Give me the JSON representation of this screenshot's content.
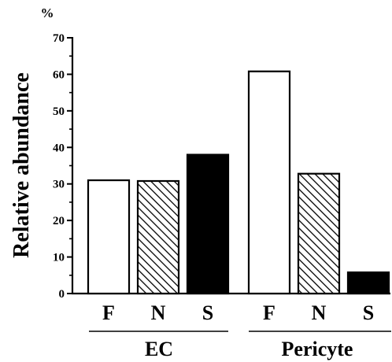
{
  "chart_data": {
    "type": "bar",
    "title": "",
    "xlabel": "",
    "ylabel": "Relative abundance",
    "unit": "%",
    "ylim": [
      0,
      70
    ],
    "yticks": [
      "0",
      "10",
      "20",
      "30",
      "40",
      "50",
      "60",
      "70"
    ],
    "grid": false,
    "legend": "none",
    "groups": [
      {
        "name": "EC",
        "categories": [
          "F",
          "N",
          "S"
        ],
        "values": [
          31,
          30.8,
          38
        ],
        "fills": [
          "white",
          "hatched",
          "black"
        ]
      },
      {
        "name": "Pericyte",
        "categories": [
          "F",
          "N",
          "S"
        ],
        "values": [
          60.8,
          32.8,
          5.8
        ],
        "fills": [
          "white",
          "hatched",
          "black"
        ]
      }
    ]
  }
}
